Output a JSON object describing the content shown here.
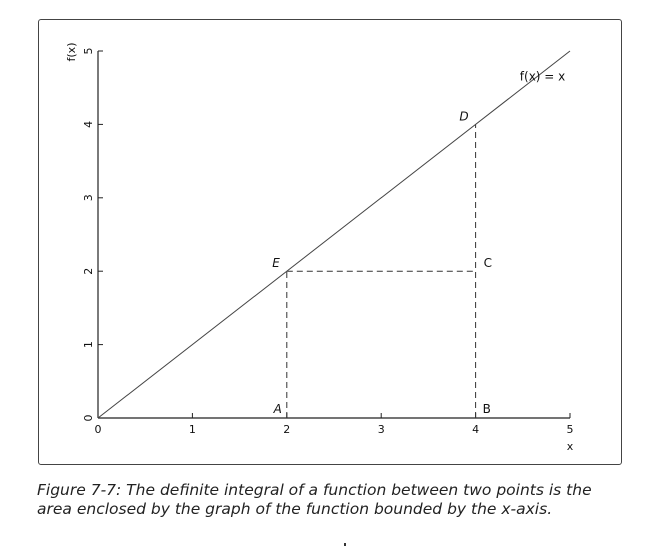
{
  "chart_data": {
    "type": "line",
    "xlabel": "x",
    "ylabel": "f(x)",
    "xlim": [
      0,
      5
    ],
    "ylim": [
      0,
      5
    ],
    "x_ticks": [
      0,
      1,
      2,
      3,
      4,
      5
    ],
    "y_ticks": [
      0,
      1,
      2,
      3,
      4,
      5
    ],
    "grid": false,
    "series": [
      {
        "name": "f(x) = x",
        "x": [
          0,
          5
        ],
        "y": [
          0,
          5
        ],
        "color": "#444444"
      }
    ],
    "annotation_lines": [
      {
        "from": [
          2,
          0
        ],
        "to": [
          2,
          2
        ],
        "style": "dashed"
      },
      {
        "from": [
          4,
          0
        ],
        "to": [
          4,
          4
        ],
        "style": "dashed"
      },
      {
        "from": [
          2,
          2
        ],
        "to": [
          4,
          2
        ],
        "style": "dashed"
      }
    ],
    "point_labels": [
      {
        "text": "A",
        "x": 2,
        "y": 0,
        "side": "left",
        "italic": true
      },
      {
        "text": "B",
        "x": 4,
        "y": 0,
        "side": "right",
        "italic": false
      },
      {
        "text": "C",
        "x": 4,
        "y": 2,
        "side": "right",
        "italic": false
      },
      {
        "text": "D",
        "x": 4,
        "y": 4,
        "side": "left",
        "italic": true
      },
      {
        "text": "E",
        "x": 2,
        "y": 2,
        "side": "left",
        "italic": true
      }
    ],
    "curve_label": {
      "text": "f(x) = x",
      "x": 4.95,
      "y": 4.6
    }
  },
  "caption": "Figure 7-7: The definite integral of a function between two points is the area enclosed by the graph of the function bounded by the x-axis."
}
